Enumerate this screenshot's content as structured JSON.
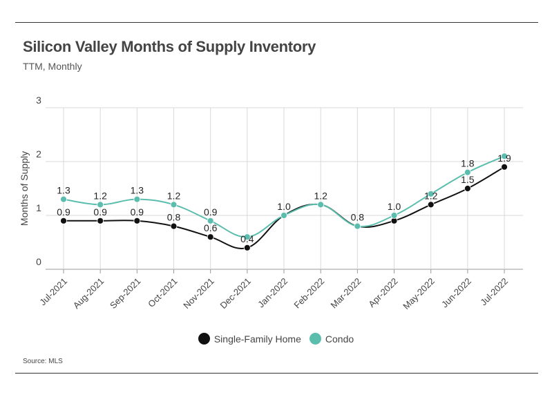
{
  "header": {
    "title": "Silicon Valley Months of Supply Inventory",
    "subtitle": "TTM, Monthly"
  },
  "footer": {
    "source": "Source:  MLS"
  },
  "chart_data": {
    "type": "line",
    "title": "Silicon Valley Months of Supply Inventory",
    "subtitle": "TTM, Monthly",
    "xlabel": "",
    "ylabel": "Months of Supply",
    "ylim": [
      0,
      3
    ],
    "yticks": [
      "0",
      "1",
      "2",
      "3"
    ],
    "grid": true,
    "legend_position": "bottom-center",
    "categories": [
      "Jul-2021",
      "Aug-2021",
      "Sep-2021",
      "Oct-2021",
      "Nov-2021",
      "Dec-2021",
      "Jan-2022",
      "Feb-2022",
      "Mar-2022",
      "Apr-2022",
      "May-2022",
      "Jun-2022",
      "Jul-2022"
    ],
    "series": [
      {
        "name": "Single-Family Home",
        "color": "#111111",
        "values": [
          0.9,
          0.9,
          0.9,
          0.8,
          0.6,
          0.4,
          1.0,
          1.2,
          0.8,
          0.9,
          1.2,
          1.5,
          1.9
        ],
        "labels": [
          "0.9",
          "0.9",
          "0.9",
          "0.8",
          "0.6",
          "0.4",
          "",
          "",
          "",
          "",
          "1.2",
          "1.5",
          "1.9"
        ]
      },
      {
        "name": "Condo",
        "color": "#5bbdad",
        "values": [
          1.3,
          1.2,
          1.3,
          1.2,
          0.9,
          0.6,
          1.0,
          1.2,
          0.8,
          1.0,
          1.4,
          1.8,
          2.1
        ],
        "labels": [
          "1.3",
          "1.2",
          "1.3",
          "1.2",
          "0.9",
          "",
          "1.0",
          "1.2",
          "0.8",
          "1.0",
          "",
          "1.8",
          ""
        ]
      }
    ]
  }
}
